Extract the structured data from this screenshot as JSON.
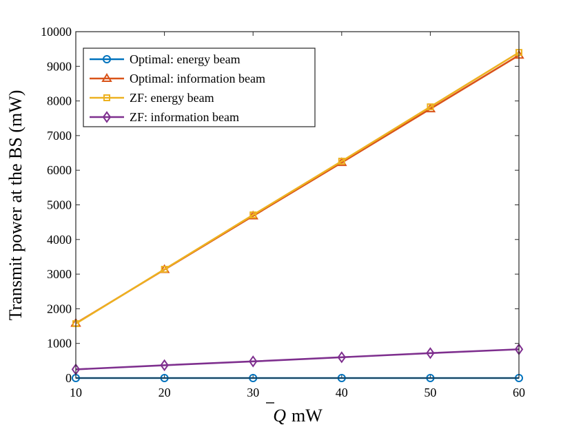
{
  "chart_data": {
    "type": "line",
    "title": "",
    "xlabel": "Q̄ mW",
    "xlabel_symbol": "Q",
    "xlabel_unit": "mW",
    "ylabel": "Transmit power at the BS (mW)",
    "x": [
      10,
      20,
      30,
      40,
      50,
      60
    ],
    "xlim": [
      10,
      60
    ],
    "ylim": [
      0,
      10000
    ],
    "xticks": [
      10,
      20,
      30,
      40,
      50,
      60
    ],
    "yticks": [
      0,
      1000,
      2000,
      3000,
      4000,
      5000,
      6000,
      7000,
      8000,
      9000,
      10000
    ],
    "grid": false,
    "legend_position": "top-left",
    "series": [
      {
        "name": "Optimal: energy beam",
        "color": "#0072BD",
        "marker": "circle",
        "values": [
          0,
          0,
          0,
          0,
          0,
          0
        ]
      },
      {
        "name": "Optimal: information beam",
        "color": "#D95319",
        "marker": "triangle",
        "values": [
          1580,
          3130,
          4680,
          6220,
          7770,
          9320
        ]
      },
      {
        "name": "ZF: energy beam",
        "color": "#EDB120",
        "marker": "square",
        "values": [
          1570,
          3140,
          4710,
          6260,
          7830,
          9400
        ]
      },
      {
        "name": "ZF: information beam",
        "color": "#7E2F8E",
        "marker": "diamond",
        "values": [
          250,
          370,
          480,
          600,
          720,
          830
        ]
      }
    ]
  }
}
